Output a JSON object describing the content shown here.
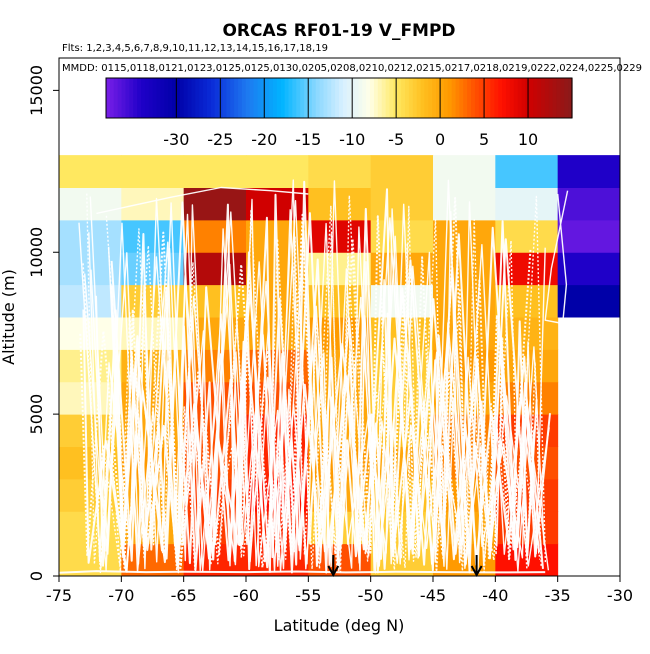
{
  "chart_data": {
    "type": "heatmap",
    "title": "ORCAS RF01-19 V_FMPD",
    "flights_label": "Flts: 1,2,3,4,5,6,7,8,9,10,11,12,13,14,15,16,17,18,19",
    "dates_label": "MMDD: 0115,0118,0121,0123,0125,0125,0130,0205,0208,0210,0212,0215,0217,0218,0219,0222,0224,0225,0229",
    "xlabel": "Latitude (deg N)",
    "ylabel": "Altitude (m)",
    "xlim": [
      -75,
      -30
    ],
    "ylim": [
      0,
      16000
    ],
    "x_ticks": [
      -75,
      -70,
      -65,
      -60,
      -55,
      -50,
      -45,
      -40,
      -35,
      -30
    ],
    "y_ticks": [
      0,
      5000,
      10000,
      15000
    ],
    "colorbar": {
      "range": [
        -38,
        15
      ],
      "ticks": [
        -30,
        -25,
        -20,
        -15,
        -10,
        -5,
        0,
        5,
        10
      ],
      "stops": [
        {
          "v": -38,
          "c": "#7a1fe8"
        },
        {
          "v": -34,
          "c": "#1f00c8"
        },
        {
          "v": -30,
          "c": "#0000a8"
        },
        {
          "v": -26,
          "c": "#0a2bd8"
        },
        {
          "v": -22,
          "c": "#1e78f0"
        },
        {
          "v": -18,
          "c": "#00b4ff"
        },
        {
          "v": -14,
          "c": "#8cd8ff"
        },
        {
          "v": -11,
          "c": "#d8f0ff"
        },
        {
          "v": -8,
          "c": "#ffffe8"
        },
        {
          "v": -5,
          "c": "#ffe860"
        },
        {
          "v": -2,
          "c": "#ffc020"
        },
        {
          "v": 1,
          "c": "#ff9a00"
        },
        {
          "v": 4,
          "c": "#ff5000"
        },
        {
          "v": 7,
          "c": "#ff1000"
        },
        {
          "v": 10,
          "c": "#d00000"
        },
        {
          "v": 15,
          "c": "#8a1a1a"
        }
      ]
    },
    "lat_bins": [
      -75,
      -70,
      -65,
      -60,
      -55,
      -50,
      -45,
      -40,
      -35
    ],
    "alt_bin_size": 1000,
    "cells": [
      [
        -4,
        3,
        6,
        6,
        4,
        -3,
        1,
        7
      ],
      [
        -4,
        0,
        5,
        6,
        -3,
        -3,
        0,
        5
      ],
      [
        -3,
        0,
        5,
        7,
        0,
        -2,
        1,
        5
      ],
      [
        -2,
        1,
        4,
        6,
        1,
        0,
        2,
        4
      ],
      [
        -3,
        0,
        4,
        6,
        0,
        -2,
        2,
        5
      ],
      [
        -7,
        0,
        4,
        4,
        0,
        -3,
        0,
        2
      ],
      [
        -6,
        -1,
        2,
        3,
        0,
        -3,
        1,
        0
      ],
      [
        -8,
        -7,
        0,
        0,
        1,
        -2,
        0,
        -1
      ],
      [
        -12,
        -3,
        -2,
        0,
        -2,
        -9,
        0,
        -2,
        -30
      ],
      [
        -13,
        -15,
        12,
        0,
        -6,
        0,
        0,
        8,
        -34
      ],
      [
        -13,
        -16,
        2,
        0,
        9,
        -4,
        0,
        -4,
        -37
      ],
      [
        -9,
        -7,
        14,
        10,
        -2,
        -3,
        -9,
        -10,
        -36
      ],
      [
        -5,
        -5,
        -5,
        -5,
        -4,
        -3,
        -9,
        -16,
        -34
      ]
    ],
    "arrows_lat": [
      -53,
      -41.5
    ]
  }
}
